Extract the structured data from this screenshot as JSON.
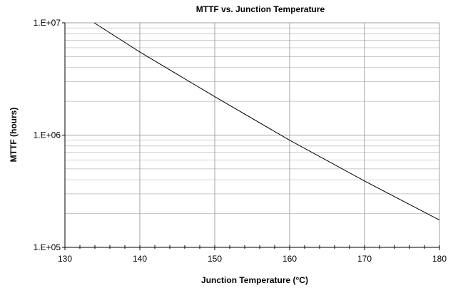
{
  "chart_data": {
    "type": "line",
    "title": "MTTF vs. Junction Temperature",
    "xlabel": "Junction Temperature (°C)",
    "ylabel": "MTTF (hours)",
    "xlim": [
      130,
      180
    ],
    "ylim": [
      100000,
      10000000
    ],
    "yscale": "log",
    "grid": true,
    "x_ticks": [
      130,
      140,
      150,
      160,
      170,
      180
    ],
    "x_tick_labels": [
      "130",
      "140",
      "150",
      "160",
      "170",
      "180"
    ],
    "y_ticks": [
      100000,
      1000000,
      10000000
    ],
    "y_tick_labels": [
      "1.E+05",
      "1.E+06",
      "1.E+07"
    ],
    "series": [
      {
        "color": "#000000",
        "x": [
          133.9,
          140,
          150,
          160,
          170,
          180
        ],
        "y": [
          10000000,
          5500000,
          2200000,
          900000,
          390000,
          175000
        ]
      }
    ]
  }
}
